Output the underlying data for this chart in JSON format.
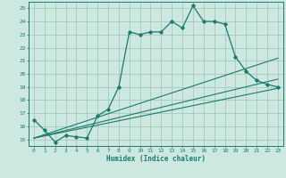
{
  "title": "",
  "xlabel": "Humidex (Indice chaleur)",
  "ylabel": "",
  "bg_color": "#cce8e0",
  "grid_color": "#aaccC4",
  "line_color": "#1a7a6e",
  "xlim": [
    -0.5,
    23.5
  ],
  "ylim": [
    14.5,
    25.5
  ],
  "xticks": [
    0,
    1,
    2,
    3,
    4,
    5,
    6,
    7,
    8,
    9,
    10,
    11,
    12,
    13,
    14,
    15,
    16,
    17,
    18,
    19,
    20,
    21,
    22,
    23
  ],
  "yticks": [
    15,
    16,
    17,
    18,
    19,
    20,
    21,
    22,
    23,
    24,
    25
  ],
  "series": [
    {
      "x": [
        0,
        1,
        2,
        3,
        4,
        5,
        6,
        7,
        8,
        9,
        10,
        11,
        12,
        13,
        14,
        15,
        16,
        17,
        18,
        19,
        20,
        21,
        22,
        23
      ],
      "y": [
        16.5,
        15.7,
        14.8,
        15.3,
        15.2,
        15.1,
        16.8,
        17.3,
        19.0,
        23.2,
        23.0,
        23.2,
        23.2,
        24.0,
        23.5,
        25.2,
        24.0,
        24.0,
        23.8,
        21.3,
        20.2,
        19.5,
        19.2,
        19.0
      ],
      "marker": "D",
      "markersize": 1.8
    },
    {
      "x": [
        0,
        23
      ],
      "y": [
        15.1,
        18.9
      ],
      "marker": null
    },
    {
      "x": [
        0,
        23
      ],
      "y": [
        15.1,
        19.6
      ],
      "marker": null
    },
    {
      "x": [
        0,
        23
      ],
      "y": [
        15.1,
        21.2
      ],
      "marker": null
    }
  ]
}
